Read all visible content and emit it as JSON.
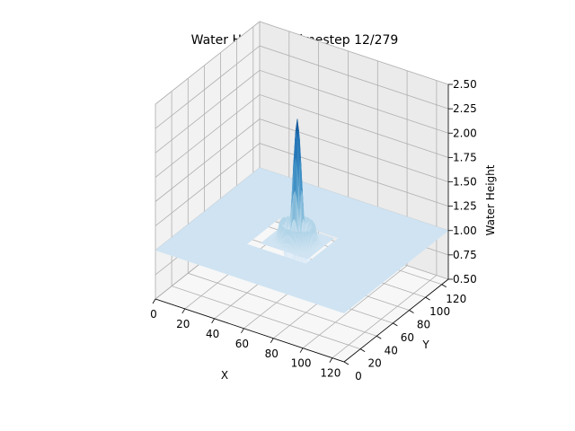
{
  "chart_data": {
    "type": "surface3d",
    "title": "Water Height at timestep 12/279",
    "xlabel": "X",
    "ylabel": "Y",
    "zlabel": "Water Height",
    "xlim": [
      0,
      128
    ],
    "ylim": [
      0,
      128
    ],
    "zlim": [
      0.5,
      2.5
    ],
    "x_ticks": [
      "0",
      "20",
      "40",
      "60",
      "80",
      "100",
      "120"
    ],
    "y_ticks": [
      "0",
      "20",
      "40",
      "60",
      "80",
      "100",
      "120"
    ],
    "z_ticks": [
      "0.50",
      "0.75",
      "1.00",
      "1.25",
      "1.50",
      "1.75",
      "2.00",
      "2.25",
      "2.50"
    ],
    "colormap": "Blues",
    "grid": true,
    "surface": {
      "baseline": 1.0,
      "peak": {
        "x": 62,
        "y": 62,
        "z": 2.25
      },
      "trough_min": 0.6
    }
  },
  "colors": {
    "pane_left": "#f2f2f2",
    "pane_back": "#ebebeb",
    "pane_floor": "#f7f7f7",
    "grid": "#b0b0b0",
    "low": "#f7fbff",
    "high": "#08306b"
  }
}
